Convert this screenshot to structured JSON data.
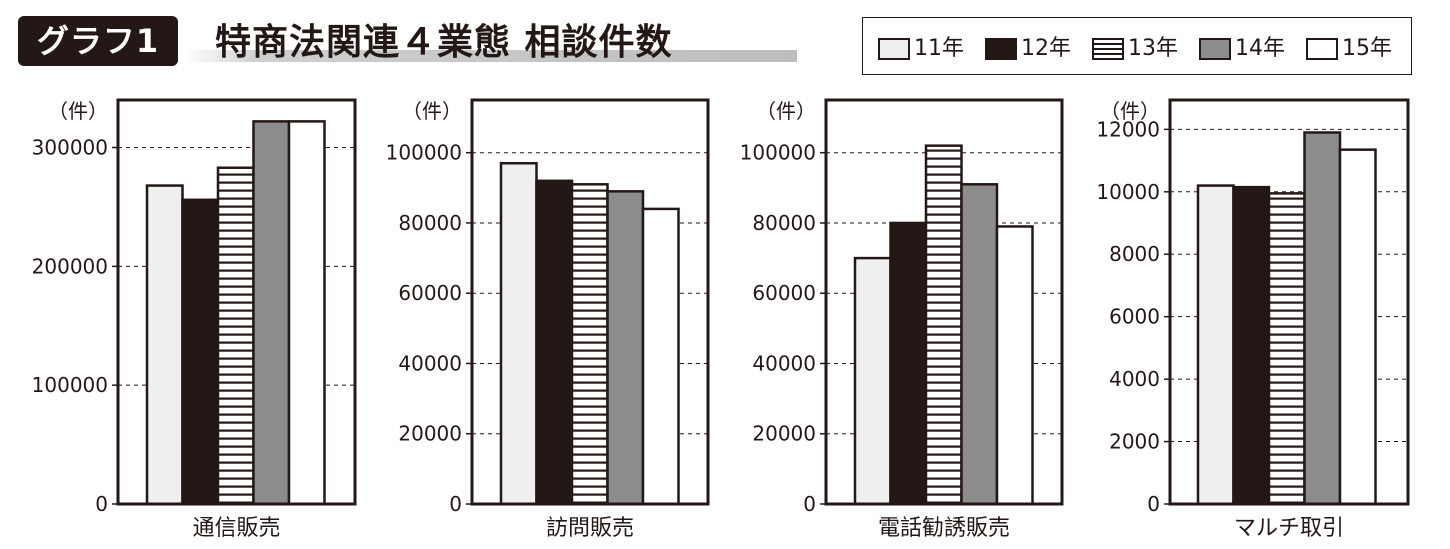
{
  "header": {
    "badge": "グラフ1",
    "title": "特商法関連４業態 相談件数"
  },
  "legend": [
    {
      "label": "11年",
      "fill": "#efefef",
      "pattern": "solid"
    },
    {
      "label": "12年",
      "fill": "#231815",
      "pattern": "solid"
    },
    {
      "label": "13年",
      "fill": "#ffffff",
      "pattern": "hstripe"
    },
    {
      "label": "14年",
      "fill": "#8c8c8c",
      "pattern": "solid"
    },
    {
      "label": "15年",
      "fill": "#ffffff",
      "pattern": "solid"
    }
  ],
  "chart_data": [
    {
      "type": "bar",
      "xlabel": "通信販売",
      "unit_label": "（件）",
      "ylim": [
        0,
        340000
      ],
      "yticks": [
        0,
        100000,
        200000,
        300000
      ],
      "grid": "dashed",
      "series": [
        {
          "name": "11年",
          "values": [
            268000
          ]
        },
        {
          "name": "12年",
          "values": [
            256000
          ]
        },
        {
          "name": "13年",
          "values": [
            283000
          ]
        },
        {
          "name": "14年",
          "values": [
            322000
          ]
        },
        {
          "name": "15年",
          "values": [
            322000
          ]
        }
      ]
    },
    {
      "type": "bar",
      "xlabel": "訪問販売",
      "unit_label": "（件）",
      "ylim": [
        0,
        115000
      ],
      "yticks": [
        0,
        20000,
        40000,
        60000,
        80000,
        100000
      ],
      "grid": "dashed",
      "series": [
        {
          "name": "11年",
          "values": [
            97000
          ]
        },
        {
          "name": "12年",
          "values": [
            92000
          ]
        },
        {
          "name": "13年",
          "values": [
            91000
          ]
        },
        {
          "name": "14年",
          "values": [
            89000
          ]
        },
        {
          "name": "15年",
          "values": [
            84000
          ]
        }
      ]
    },
    {
      "type": "bar",
      "xlabel": "電話勧誘販売",
      "unit_label": "（件）",
      "ylim": [
        0,
        115000
      ],
      "yticks": [
        0,
        20000,
        40000,
        60000,
        80000,
        100000
      ],
      "grid": "dashed",
      "series": [
        {
          "name": "11年",
          "values": [
            70000
          ]
        },
        {
          "name": "12年",
          "values": [
            80000
          ]
        },
        {
          "name": "13年",
          "values": [
            102000
          ]
        },
        {
          "name": "14年",
          "values": [
            91000
          ]
        },
        {
          "name": "15年",
          "values": [
            79000
          ]
        }
      ]
    },
    {
      "type": "bar",
      "xlabel": "マルチ取引",
      "unit_label": "（件）",
      "ylim": [
        0,
        12300
      ],
      "yticks": [
        0,
        2000,
        4000,
        6000,
        8000,
        10000,
        12000
      ],
      "grid": "dashed",
      "series": [
        {
          "name": "11年",
          "values": [
            10200
          ]
        },
        {
          "name": "12年",
          "values": [
            10150
          ]
        },
        {
          "name": "13年",
          "values": [
            9950
          ]
        },
        {
          "name": "14年",
          "values": [
            11900
          ]
        },
        {
          "name": "15年",
          "values": [
            11350
          ]
        }
      ]
    }
  ]
}
